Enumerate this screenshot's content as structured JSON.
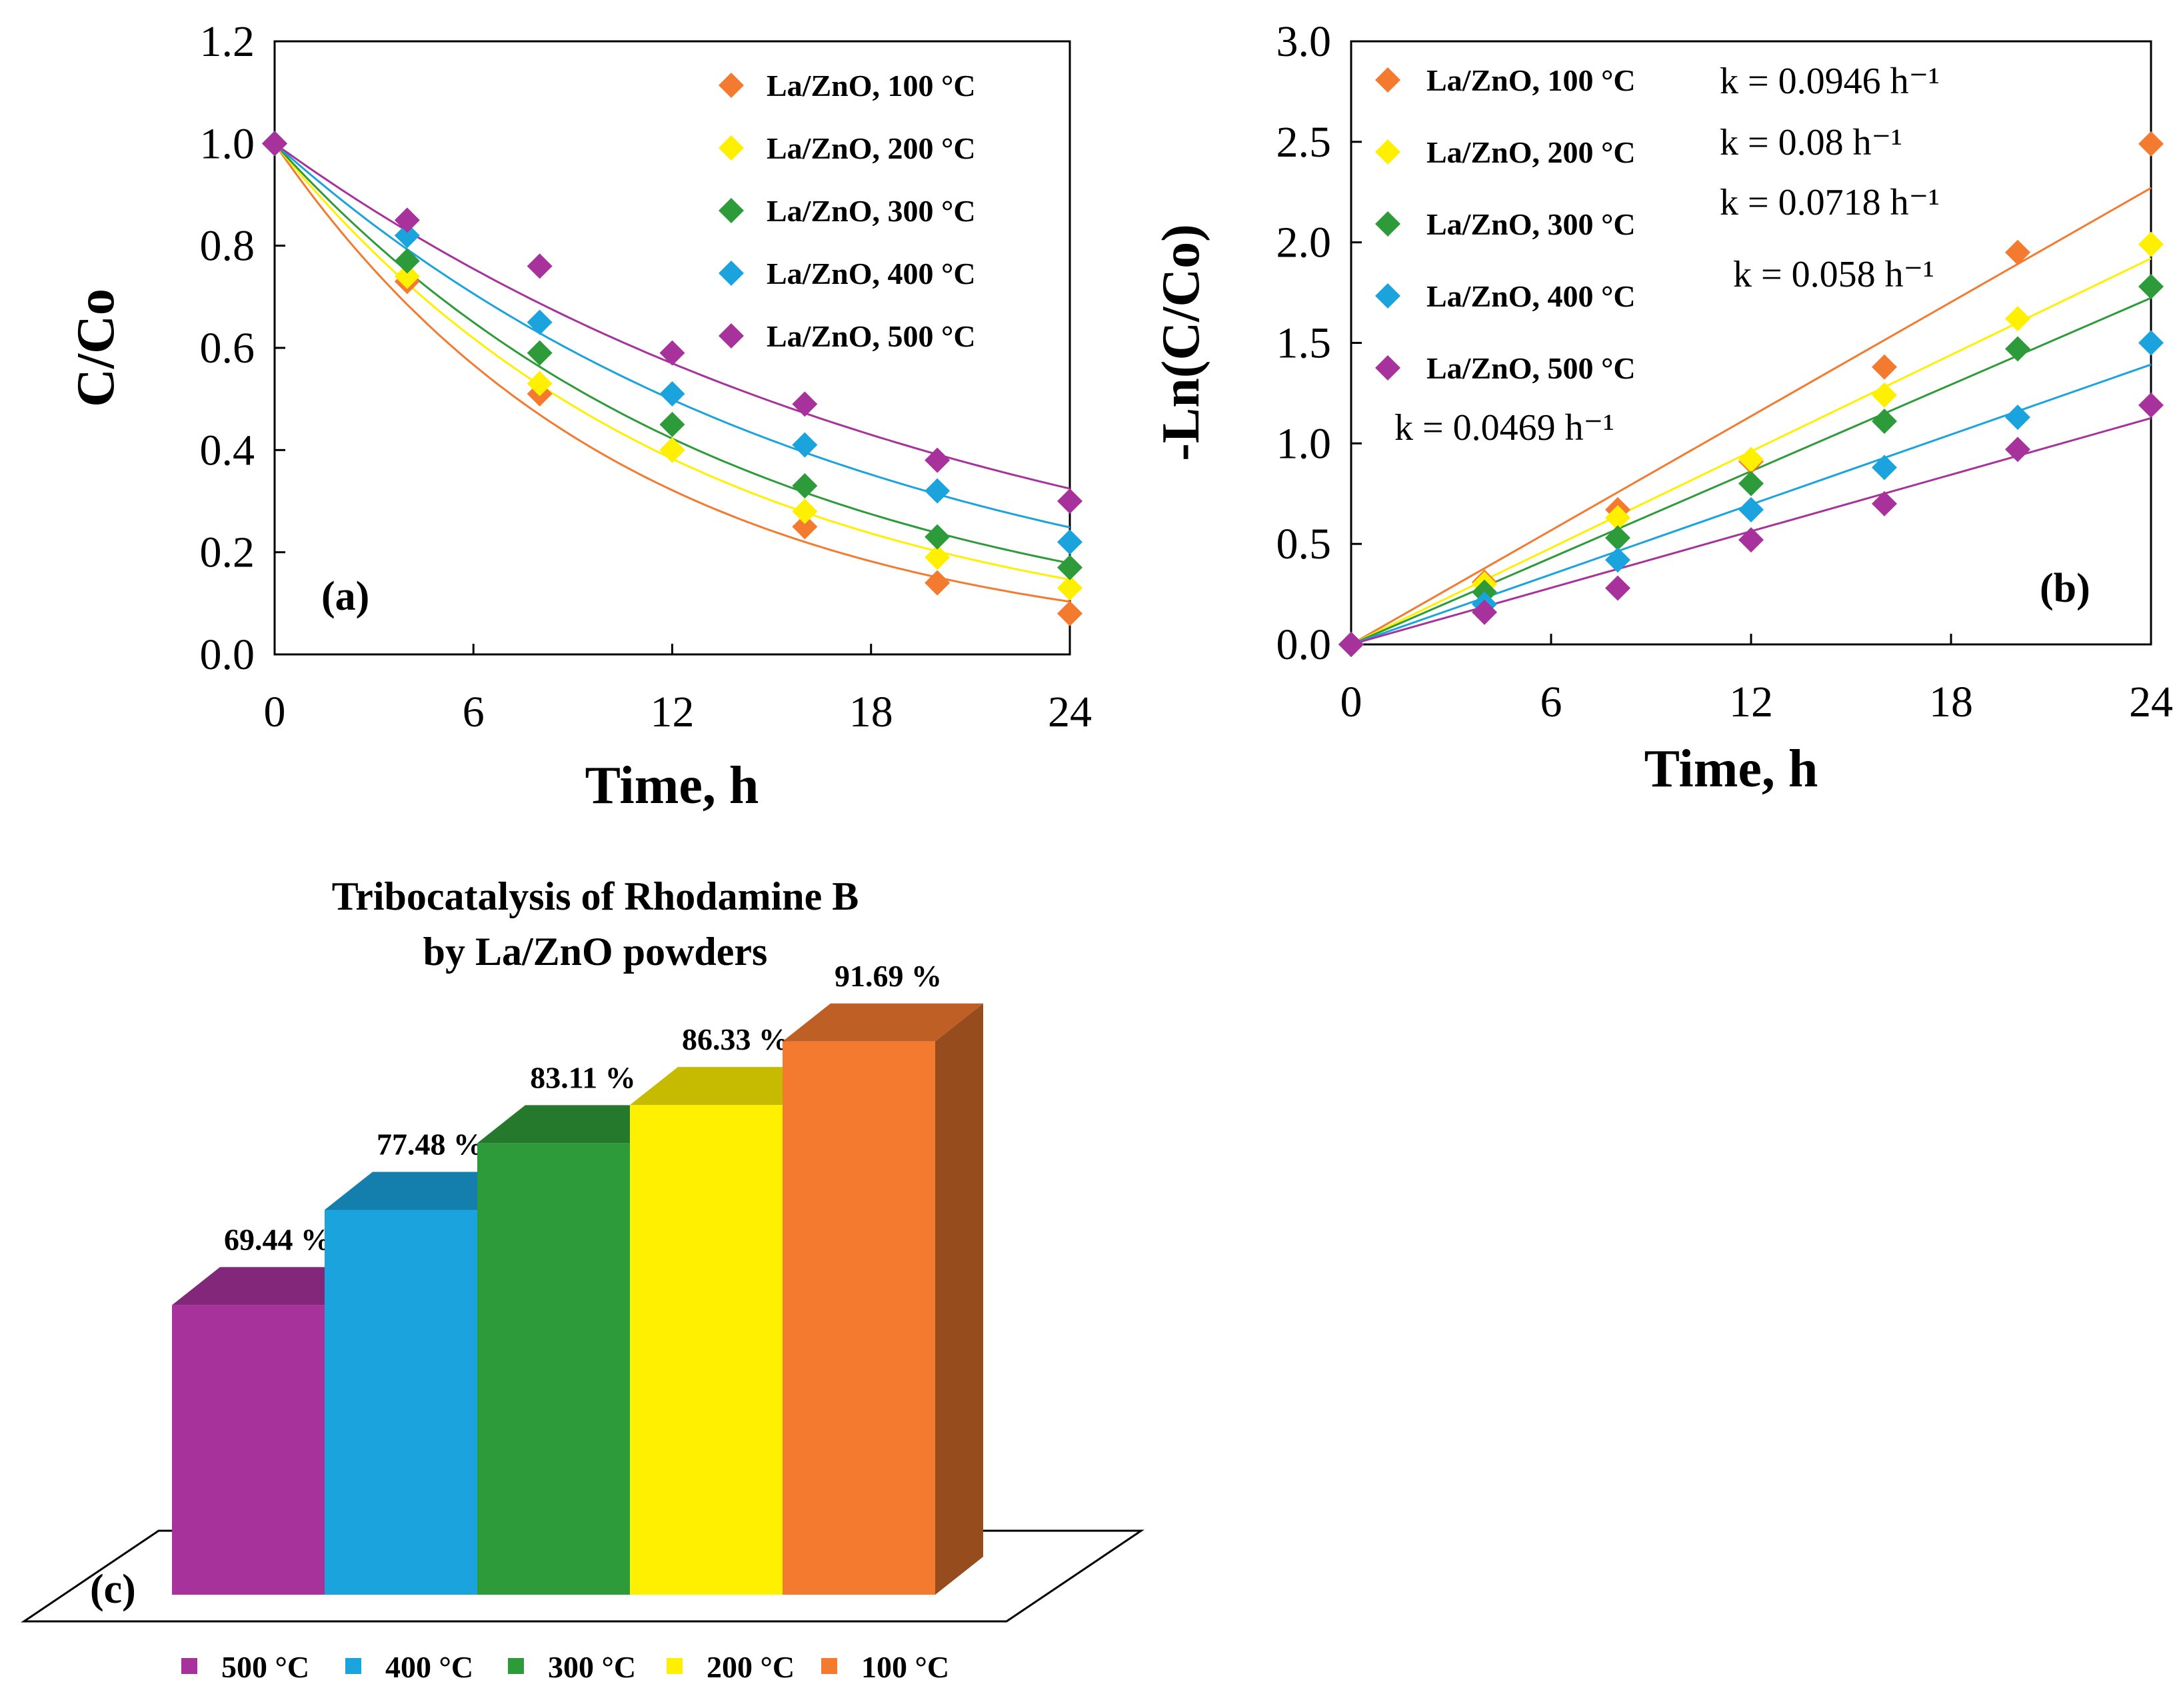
{
  "series_colors": {
    "100": "#F47A30",
    "200": "#FFF000",
    "300": "#2E9B3A",
    "400": "#1AA3DD",
    "500": "#A7329B"
  },
  "chart_data": [
    {
      "panel": "(a)",
      "type": "scatter",
      "xlabel": "Time, h",
      "ylabel": "C/Co",
      "xlim": [
        0,
        24
      ],
      "ylim": [
        0,
        1.2
      ],
      "xticks": [
        "0",
        "6",
        "12",
        "18",
        "24"
      ],
      "yticks": [
        "0.0",
        "0.2",
        "0.4",
        "0.6",
        "0.8",
        "1.0",
        "1.2"
      ],
      "legend_position": "top-right",
      "x": [
        0,
        4,
        8,
        12,
        16,
        20,
        24
      ],
      "series": [
        {
          "name": "La/ZnO,  100 °C",
          "key": "100",
          "k": 0.0946,
          "values": [
            1.0,
            0.73,
            0.51,
            0.4,
            0.25,
            0.14,
            0.08
          ]
        },
        {
          "name": "La/ZnO,  200 °C",
          "key": "200",
          "k": 0.08,
          "values": [
            1.0,
            0.74,
            0.53,
            0.4,
            0.28,
            0.19,
            0.13
          ]
        },
        {
          "name": "La/ZnO,  300 °C",
          "key": "300",
          "k": 0.0718,
          "values": [
            1.0,
            0.77,
            0.59,
            0.45,
            0.33,
            0.23,
            0.17
          ]
        },
        {
          "name": "La/ZnO,  400 °C",
          "key": "400",
          "k": 0.058,
          "values": [
            1.0,
            0.82,
            0.65,
            0.51,
            0.41,
            0.32,
            0.22
          ]
        },
        {
          "name": "La/ZnO,  500 °C",
          "key": "500",
          "k": 0.0469,
          "values": [
            1.0,
            0.85,
            0.76,
            0.59,
            0.49,
            0.38,
            0.3
          ]
        }
      ]
    },
    {
      "panel": "(b)",
      "type": "scatter",
      "xlabel": "Time, h",
      "ylabel": "-Ln(C/Co)",
      "xlim": [
        0,
        24
      ],
      "ylim": [
        0,
        3.0
      ],
      "xticks": [
        "0",
        "6",
        "12",
        "18",
        "24"
      ],
      "yticks": [
        "0.0",
        "0.5",
        "1.0",
        "1.5",
        "2.0",
        "2.5",
        "3.0"
      ],
      "legend_position": "top-left",
      "x": [
        0,
        4,
        8,
        12,
        16,
        20,
        24
      ],
      "series": [
        {
          "name": "La/ZnO,  100 °C",
          "key": "100",
          "k": 0.0946,
          "k_label": "k = 0.0946 h⁻¹",
          "values": [
            0,
            0.31,
            0.67,
            0.91,
            1.38,
            1.95,
            2.49
          ]
        },
        {
          "name": "La/ZnO,  200 °C",
          "key": "200",
          "k": 0.08,
          "k_label": "k = 0.08 h⁻¹",
          "values": [
            0,
            0.3,
            0.63,
            0.92,
            1.24,
            1.62,
            1.99
          ]
        },
        {
          "name": "La/ZnO,  300 °C",
          "key": "300",
          "k": 0.0718,
          "k_label": "k = 0.0718 h⁻¹",
          "values": [
            0,
            0.26,
            0.53,
            0.8,
            1.11,
            1.47,
            1.78
          ]
        },
        {
          "name": "La/ZnO,  400 °C",
          "key": "400",
          "k": 0.058,
          "k_label": "k = 0.058 h⁻¹",
          "values": [
            0,
            0.2,
            0.42,
            0.67,
            0.88,
            1.13,
            1.5
          ]
        },
        {
          "name": "La/ZnO,  500 °C",
          "key": "500",
          "k": 0.0469,
          "k_label": "k = 0.0469 h⁻¹",
          "values": [
            0,
            0.16,
            0.28,
            0.52,
            0.7,
            0.97,
            1.19
          ]
        }
      ]
    },
    {
      "panel": "(c)",
      "type": "bar",
      "title": "Tribocatalysis of Rhodamine B by La/ZnO powders",
      "title_lines": [
        "Tribocatalysis of Rhodamine B",
        "by La/ZnO powders"
      ],
      "style": "3d",
      "categories": [
        "500 °C",
        "400 °C",
        "300 °C",
        "200 °C",
        "100 °C"
      ],
      "keys": [
        "500",
        "400",
        "300",
        "200",
        "100"
      ],
      "values": [
        69.44,
        77.48,
        83.11,
        86.33,
        91.69
      ],
      "data_labels": [
        "69.44 %",
        "77.48 %",
        "83.11 %",
        "86.33 %",
        "91.69 %"
      ],
      "legend_position": "bottom"
    }
  ]
}
